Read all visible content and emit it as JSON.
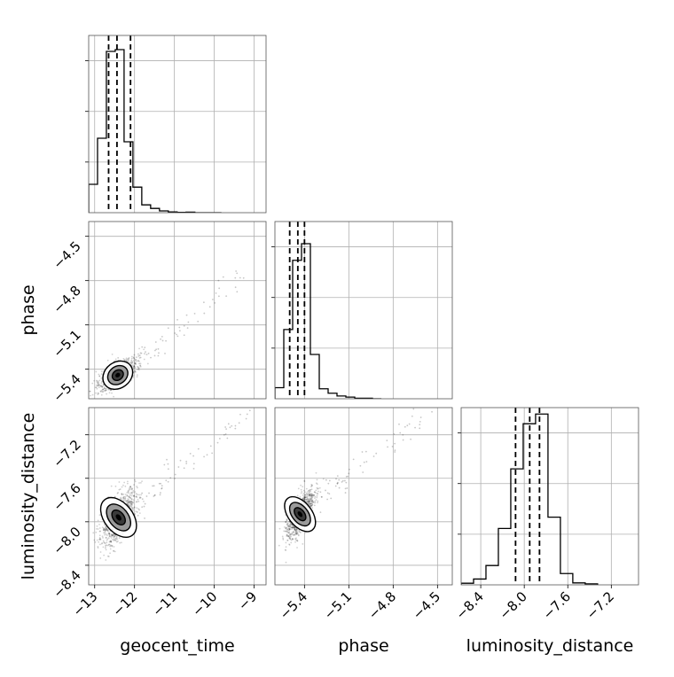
{
  "chart_data": {
    "type": "corner",
    "parameters": [
      "geocent_time",
      "phase",
      "luminosity_distance"
    ],
    "axis_labels": {
      "bottom": [
        "geocent_time",
        "phase",
        "luminosity_distance"
      ],
      "left": [
        "phase",
        "luminosity_distance"
      ]
    },
    "grid": true,
    "ranges": {
      "geocent_time": [
        -13.15,
        -8.7
      ],
      "phase": [
        -5.6,
        -4.4
      ],
      "luminosity_distance": [
        -8.58,
        -6.95
      ]
    },
    "ticks": {
      "geocent_time": {
        "values": [
          -13,
          -12,
          -11,
          -10,
          -9
        ],
        "labels": [
          "−13",
          "−12",
          "−11",
          "−10",
          "−9"
        ]
      },
      "phase": {
        "values": [
          -5.4,
          -5.1,
          -4.8,
          -4.5
        ],
        "labels": [
          "−5.4",
          "−5.1",
          "−4.8",
          "−4.5"
        ]
      },
      "luminosity_distance": {
        "values": [
          -8.4,
          -8.0,
          -7.6,
          -7.2
        ],
        "labels": [
          "−8.4",
          "−8.0",
          "−7.6",
          "−7.2"
        ]
      }
    },
    "histograms": [
      {
        "parameter": "geocent_time",
        "bin_edges": [
          -13.15,
          -12.928,
          -12.706,
          -12.484,
          -12.262,
          -12.04,
          -11.818,
          -11.596,
          -11.374,
          -11.152,
          -10.93,
          -10.708,
          -10.486,
          -10.264,
          -10.042,
          -9.82
        ],
        "counts": [
          0.8,
          2.1,
          4.55,
          4.6,
          2.0,
          0.72,
          0.22,
          0.12,
          0.05,
          0.02,
          0.01,
          0.015,
          0.0,
          0.0,
          0.0
        ],
        "ymax": 5.0,
        "quantiles": [
          -12.65,
          -12.44,
          -12.1
        ]
      },
      {
        "parameter": "phase",
        "bin_edges": [
          -5.6,
          -5.54,
          -5.48,
          -5.42,
          -5.36,
          -5.3,
          -5.24,
          -5.18,
          -5.12,
          -5.06,
          -5.0,
          -4.94,
          -4.88
        ],
        "counts": [
          0.2,
          1.25,
          2.5,
          2.8,
          0.8,
          0.18,
          0.1,
          0.05,
          0.03,
          0.01,
          0.01,
          0.0
        ],
        "ymax": 3.2,
        "quantiles": [
          -5.5,
          -5.445,
          -5.4
        ]
      },
      {
        "parameter": "luminosity_distance",
        "bin_edges": [
          -8.58,
          -8.466,
          -8.352,
          -8.238,
          -8.124,
          -8.01,
          -7.896,
          -7.782,
          -7.668,
          -7.554,
          -7.44,
          -7.326
        ],
        "counts": [
          0.05,
          0.18,
          0.6,
          1.75,
          3.6,
          5.0,
          5.3,
          2.1,
          0.35,
          0.06,
          0.03
        ],
        "ymax": 5.5,
        "quantiles": [
          -8.08,
          -7.95,
          -7.86
        ]
      }
    ],
    "contour_panels": [
      {
        "x": "geocent_time",
        "y": "phase",
        "mode": {
          "x": -12.42,
          "y": -5.44
        },
        "spread": {
          "x": 0.2,
          "y": 0.038
        }
      },
      {
        "x": "geocent_time",
        "y": "luminosity_distance",
        "mode": {
          "x": -12.4,
          "y": -7.96
        },
        "spread": {
          "x": 0.18,
          "y": 0.09
        }
      },
      {
        "x": "phase",
        "y": "luminosity_distance",
        "mode": {
          "x": -5.43,
          "y": -7.93
        },
        "spread": {
          "x": 0.04,
          "y": 0.08
        }
      }
    ]
  }
}
